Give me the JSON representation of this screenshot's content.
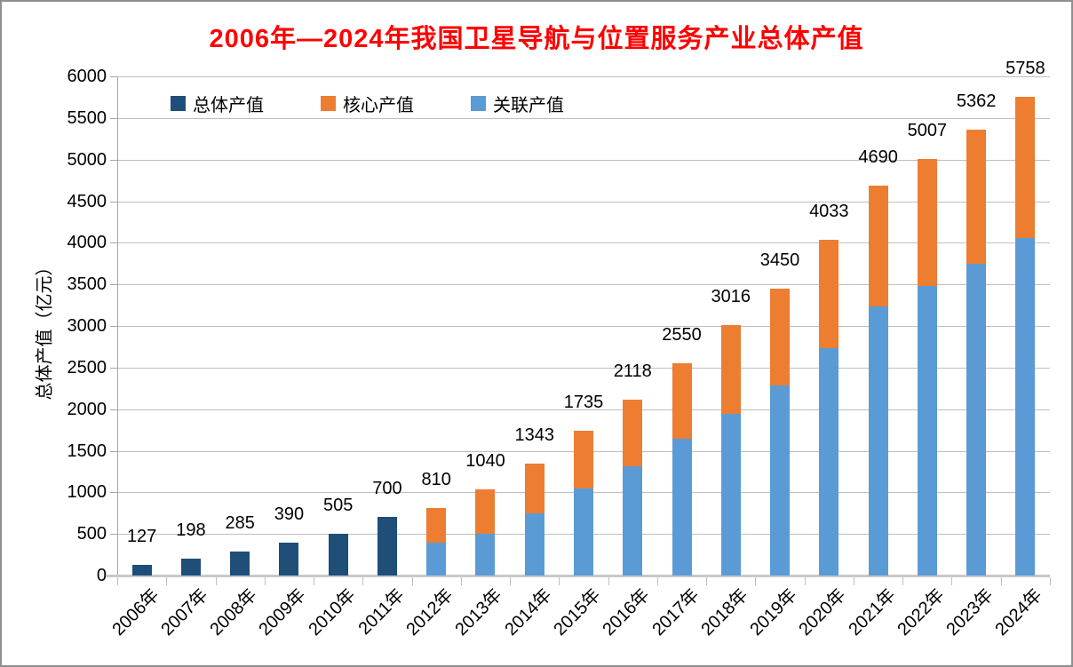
{
  "window": {
    "background": "#FFFFFF",
    "border_color": "#8F8F8F"
  },
  "chart_data": {
    "type": "bar",
    "stacked": true,
    "title": "2006年—2024年我国卫星导航与位置服务产业总体产值",
    "title_color": "#FF0000",
    "xlabel": "",
    "ylabel": "总体产值（亿元）",
    "ylim": [
      0,
      6000
    ],
    "ytick_step": 500,
    "grid": true,
    "legend_position": "top-left-inside",
    "categories": [
      "2006年",
      "2007年",
      "2008年",
      "2009年",
      "2010年",
      "2011年",
      "2012年",
      "2013年",
      "2014年",
      "2015年",
      "2016年",
      "2017年",
      "2018年",
      "2019年",
      "2020年",
      "2021年",
      "2022年",
      "2023年",
      "2024年"
    ],
    "series": [
      {
        "name": "总体产值",
        "color": "#1F4E79",
        "role": "solo",
        "values": [
          127,
          198,
          285,
          390,
          505,
          700,
          null,
          null,
          null,
          null,
          null,
          null,
          null,
          null,
          null,
          null,
          null,
          null,
          null
        ]
      },
      {
        "name": "核心产值",
        "color": "#ED7D31",
        "role": "stack-top",
        "values": [
          null,
          null,
          null,
          null,
          null,
          null,
          420,
          540,
          593,
          685,
          808,
          902,
          1069,
          1166,
          1295,
          1454,
          1527,
          1611,
          1699
        ]
      },
      {
        "name": "关联产值",
        "color": "#5B9BD5",
        "role": "stack-bottom",
        "values": [
          null,
          null,
          null,
          null,
          null,
          null,
          390,
          500,
          750,
          1050,
          1310,
          1648,
          1947,
          2284,
          2738,
          3236,
          3480,
          3751,
          4059
        ]
      }
    ],
    "value_labels": [
      "127",
      "198",
      "285",
      "390",
      "505",
      "700",
      "810",
      "1040",
      "1343",
      "1735",
      "2118",
      "2550",
      "3016",
      "3450",
      "4033",
      "4690",
      "5007",
      "5362",
      "5758"
    ],
    "ytick_labels": [
      "0",
      "500",
      "1000",
      "1500",
      "2000",
      "2500",
      "3000",
      "3500",
      "4000",
      "4500",
      "5000",
      "5500",
      "6000"
    ]
  },
  "legend": {
    "items": [
      {
        "label": "总体产值",
        "color": "#1F4E79"
      },
      {
        "label": "核心产值",
        "color": "#ED7D31"
      },
      {
        "label": "关联产值",
        "color": "#5B9BD5"
      }
    ]
  }
}
